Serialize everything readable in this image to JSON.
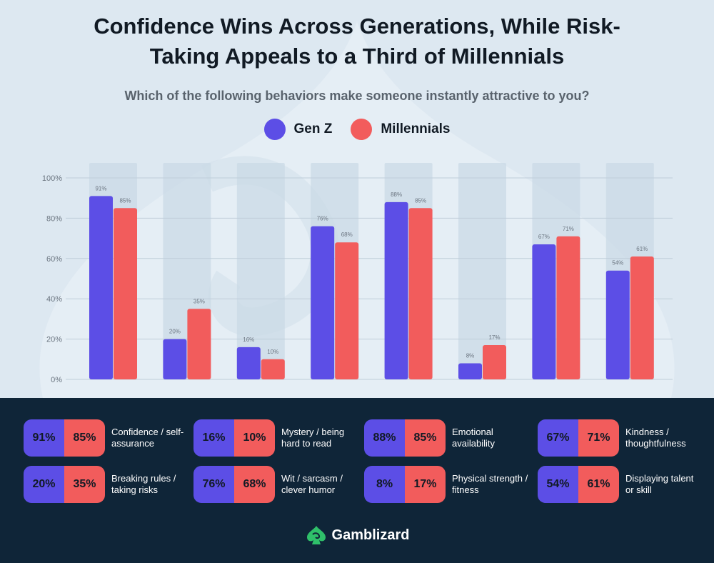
{
  "title_line1": "Confidence Wins Across Generations, While Risk-",
  "title_line2": "Taking Appeals to a Third of Millennials",
  "subtitle": "Which of the following behaviors make someone instantly attractive to you?",
  "legend": [
    {
      "label": "Gen Z",
      "color": "#5c4ee6"
    },
    {
      "label": "Millennials",
      "color": "#f25c5c"
    }
  ],
  "colors": {
    "genz": "#5c4ee6",
    "millennials": "#f25c5c",
    "band": "#cad9e5",
    "grid": "#bfcdd9",
    "tick": "#6b7580"
  },
  "chart_data": {
    "type": "bar",
    "title": "Confidence Wins Across Generations, While Risk-Taking Appeals to a Third of Millennials",
    "subtitle": "Which of the following behaviors make someone instantly attractive to you?",
    "categories": [
      "Confidence / self-assurance",
      "Breaking rules / taking risks",
      "Mystery / being hard to read",
      "Wit / sarcasm / clever humor",
      "Emotional availability",
      "Physical strength / fitness",
      "Kindness / thoughtfulness",
      "Displaying talent or skill"
    ],
    "series": [
      {
        "name": "Gen Z",
        "values": [
          91,
          20,
          16,
          76,
          88,
          8,
          67,
          54
        ]
      },
      {
        "name": "Millennials",
        "values": [
          85,
          35,
          10,
          68,
          85,
          17,
          71,
          61
        ]
      }
    ],
    "yticks": [
      "0%",
      "20%",
      "40%",
      "60%",
      "80%",
      "100%"
    ],
    "ylim": [
      0,
      100
    ],
    "xlabel": "",
    "ylabel": "",
    "legend": "top-center",
    "grid": true
  },
  "cards_row1": [
    {
      "genz": "91%",
      "mill": "85%",
      "label": "Confidence / self-assurance"
    },
    {
      "genz": "16%",
      "mill": "10%",
      "label": "Mystery / being hard to read"
    },
    {
      "genz": "88%",
      "mill": "85%",
      "label": "Emotional availability"
    },
    {
      "genz": "67%",
      "mill": "71%",
      "label": "Kindness / thoughtfulness"
    }
  ],
  "cards_row2": [
    {
      "genz": "20%",
      "mill": "35%",
      "label": "Breaking rules / taking risks"
    },
    {
      "genz": "76%",
      "mill": "68%",
      "label": "Wit / sarcasm / clever humor"
    },
    {
      "genz": "8%",
      "mill": "17%",
      "label": "Physical strength / fitness"
    },
    {
      "genz": "54%",
      "mill": "61%",
      "label": "Displaying talent or skill"
    }
  ],
  "brand": {
    "name": "Gamblizard",
    "logo_icon": "lizard-spade-icon",
    "color": "#2fc06a"
  }
}
